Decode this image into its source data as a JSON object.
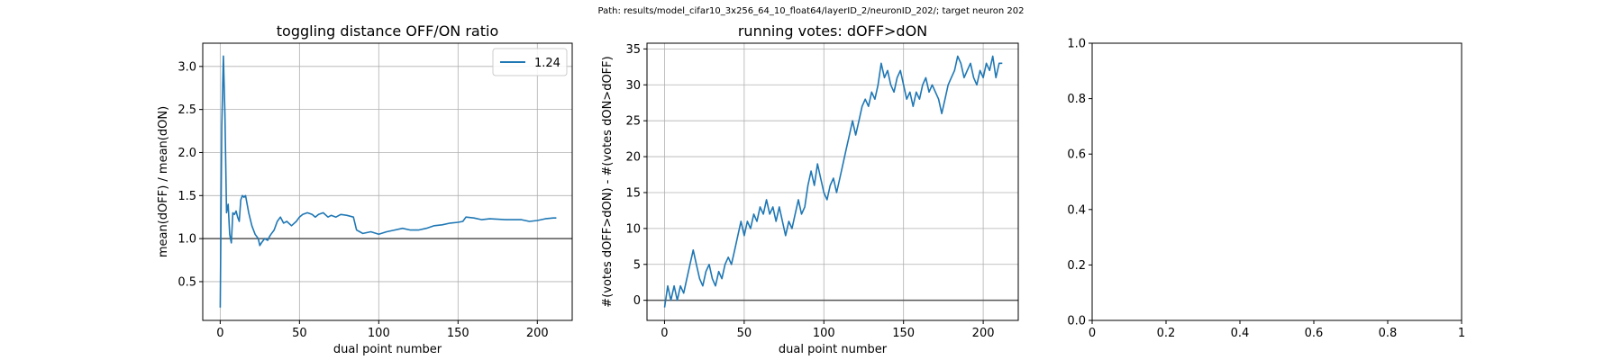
{
  "suptitle": "Path: results/model_cifar10_3x256_64_10_float64/layerID_2/neuronID_202/; target neuron 202",
  "chart_data": [
    {
      "type": "line",
      "title": "toggling distance OFF/ON ratio",
      "xlabel": "dual point number",
      "ylabel": "mean(dOFF) / mean(dON)",
      "xlim": [
        -11,
        222
      ],
      "ylim": [
        0.05,
        3.27
      ],
      "xticks": [
        0,
        50,
        100,
        150,
        200
      ],
      "yticks": [
        0.5,
        1.0,
        1.5,
        2.0,
        2.5,
        3.0
      ],
      "ytick_labels": [
        "0.5",
        "1.0",
        "1.5",
        "2.0",
        "2.5",
        "3.0"
      ],
      "grid": true,
      "hline": 1.0,
      "legend": {
        "label": "1.24",
        "placement": "top-right"
      },
      "series_color": "#1f77b4",
      "series": [
        {
          "name": "1.24",
          "x": [
            0,
            1,
            2,
            3,
            4,
            5,
            6,
            7,
            8,
            9,
            10,
            11,
            12,
            13,
            14,
            15,
            16,
            18,
            20,
            22,
            24,
            25,
            26,
            28,
            30,
            31,
            32,
            34,
            36,
            38,
            40,
            42,
            45,
            48,
            50,
            52,
            55,
            58,
            60,
            62,
            65,
            68,
            70,
            73,
            76,
            80,
            84,
            86,
            88,
            90,
            95,
            100,
            105,
            110,
            115,
            120,
            125,
            130,
            135,
            140,
            145,
            150,
            153,
            155,
            160,
            165,
            170,
            180,
            190,
            195,
            200,
            205,
            210,
            212
          ],
          "values": [
            0.2,
            2.3,
            3.12,
            2.45,
            1.3,
            1.4,
            1.05,
            0.95,
            1.3,
            1.28,
            1.32,
            1.25,
            1.2,
            1.45,
            1.5,
            1.48,
            1.5,
            1.3,
            1.15,
            1.05,
            1.0,
            0.92,
            0.95,
            1.0,
            0.98,
            1.02,
            1.05,
            1.1,
            1.2,
            1.25,
            1.18,
            1.2,
            1.15,
            1.2,
            1.25,
            1.28,
            1.3,
            1.28,
            1.25,
            1.28,
            1.3,
            1.25,
            1.27,
            1.25,
            1.28,
            1.27,
            1.25,
            1.1,
            1.08,
            1.06,
            1.08,
            1.05,
            1.08,
            1.1,
            1.12,
            1.1,
            1.1,
            1.12,
            1.15,
            1.16,
            1.18,
            1.19,
            1.2,
            1.25,
            1.24,
            1.22,
            1.23,
            1.22,
            1.22,
            1.2,
            1.21,
            1.23,
            1.24,
            1.24
          ]
        }
      ]
    },
    {
      "type": "line",
      "title": "running votes: dOFF>dON",
      "xlabel": "dual point number",
      "ylabel": "#(votes dOFF>dON) - #(votes dON>dOFF)",
      "xlim": [
        -11,
        222
      ],
      "ylim": [
        -2.8,
        35.8
      ],
      "xticks": [
        0,
        50,
        100,
        150,
        200
      ],
      "yticks": [
        0,
        5,
        10,
        15,
        20,
        25,
        30,
        35
      ],
      "ytick_labels": [
        "0",
        "5",
        "10",
        "15",
        "20",
        "25",
        "30",
        "35"
      ],
      "grid": true,
      "hline": 0,
      "series_color": "#1f77b4",
      "series": [
        {
          "x": [
            0,
            2,
            4,
            6,
            8,
            10,
            12,
            14,
            16,
            18,
            20,
            22,
            24,
            26,
            28,
            30,
            32,
            34,
            36,
            38,
            40,
            42,
            44,
            46,
            48,
            50,
            52,
            54,
            56,
            58,
            60,
            62,
            64,
            66,
            68,
            70,
            72,
            74,
            76,
            78,
            80,
            82,
            84,
            86,
            88,
            90,
            92,
            94,
            96,
            98,
            100,
            102,
            104,
            106,
            108,
            110,
            112,
            114,
            116,
            118,
            120,
            122,
            124,
            126,
            128,
            130,
            132,
            134,
            136,
            138,
            140,
            142,
            144,
            146,
            148,
            150,
            152,
            154,
            156,
            158,
            160,
            162,
            164,
            166,
            168,
            170,
            172,
            174,
            176,
            178,
            180,
            182,
            184,
            186,
            188,
            190,
            192,
            194,
            196,
            198,
            200,
            202,
            204,
            206,
            208,
            210,
            212
          ],
          "values": [
            -1,
            2,
            0,
            2,
            0,
            2,
            1,
            3,
            5,
            7,
            5,
            3,
            2,
            4,
            5,
            3,
            2,
            4,
            3,
            5,
            6,
            5,
            7,
            9,
            11,
            9,
            11,
            10,
            12,
            11,
            13,
            12,
            14,
            12,
            13,
            11,
            13,
            11,
            9,
            11,
            10,
            12,
            14,
            12,
            13,
            16,
            18,
            16,
            19,
            17,
            15,
            14,
            16,
            17,
            15,
            17,
            19,
            21,
            23,
            25,
            23,
            25,
            27,
            28,
            27,
            29,
            28,
            30,
            33,
            31,
            32,
            30,
            29,
            31,
            32,
            30,
            28,
            29,
            27,
            29,
            28,
            30,
            31,
            29,
            30,
            29,
            28,
            26,
            28,
            30,
            31,
            32,
            34,
            33,
            31,
            32,
            33,
            31,
            30,
            32,
            31,
            33,
            32,
            34,
            31,
            33,
            33
          ]
        }
      ]
    },
    {
      "type": "line",
      "title": "",
      "xlabel": "",
      "ylabel": "",
      "xlim": [
        0,
        1
      ],
      "ylim": [
        0,
        1
      ],
      "xticks": [
        0,
        0.2,
        0.4,
        0.6,
        0.8,
        1.0
      ],
      "yticks": [
        0,
        0.2,
        0.4,
        0.6,
        0.8,
        1.0
      ],
      "ytick_labels": [
        "0.0",
        "0.2",
        "0.4",
        "0.6",
        "0.8",
        "1.0"
      ],
      "grid": false,
      "series": []
    }
  ]
}
